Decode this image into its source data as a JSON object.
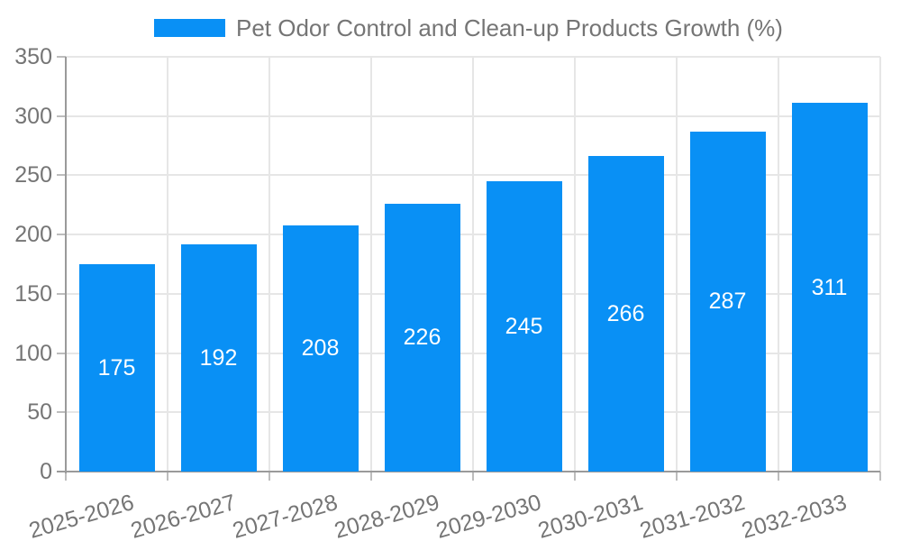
{
  "chart_data": {
    "type": "bar",
    "title": "Pet Odor Control and Clean-up Products Growth (%)",
    "legend": {
      "label": "Pet Odor Control and Clean-up Products Growth (%)",
      "position": "top"
    },
    "categories": [
      "2025-2026",
      "2026-2027",
      "2027-2028",
      "2028-2029",
      "2029-2030",
      "2030-2031",
      "2031-2032",
      "2032-2033"
    ],
    "values": [
      175,
      192,
      208,
      226,
      245,
      266,
      287,
      311
    ],
    "bar_value_labels": [
      "175",
      "192",
      "208",
      "226",
      "245",
      "266",
      "287",
      "311"
    ],
    "xlabel": "",
    "ylabel": "",
    "ylim": [
      0,
      350
    ],
    "yticks": [
      0,
      50,
      100,
      150,
      200,
      250,
      300,
      350
    ],
    "grid": true,
    "bar_label_position": "center-inside",
    "colors": {
      "bar": "#0990F5",
      "bar_value_label": "#ffffff",
      "axis_label": "#757575",
      "legend_text": "#757575",
      "grid": "#e6e6e6",
      "axis_line": "#9a9a9a",
      "tick": "#bdbdbd",
      "background": "#ffffff"
    }
  }
}
